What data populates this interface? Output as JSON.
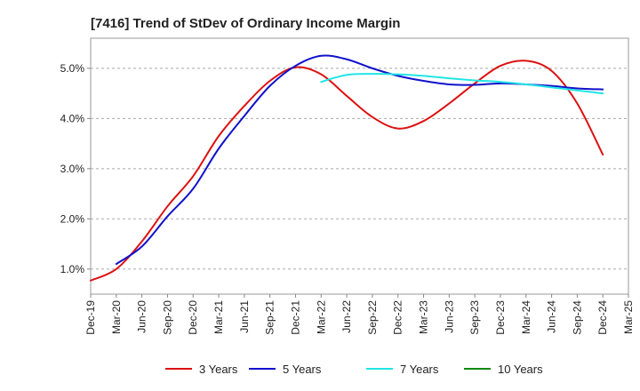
{
  "chart_data": {
    "type": "line",
    "title": "[7416]  Trend of StDev of Ordinary Income Margin",
    "xlabel": "",
    "ylabel": "",
    "x_ticks": [
      "Dec-19",
      "Mar-20",
      "Jun-20",
      "Sep-20",
      "Dec-20",
      "Mar-21",
      "Jun-21",
      "Sep-21",
      "Dec-21",
      "Mar-22",
      "Jun-22",
      "Sep-22",
      "Dec-22",
      "Mar-23",
      "Jun-23",
      "Sep-23",
      "Dec-23",
      "Mar-24",
      "Jun-24",
      "Sep-24",
      "Dec-24",
      "Mar-25"
    ],
    "y_ticks": [
      "1.0%",
      "2.0%",
      "3.0%",
      "4.0%",
      "5.0%"
    ],
    "ylim": [
      0.5,
      5.6
    ],
    "grid": "horizontal-dashed",
    "legend_position": "bottom",
    "series": [
      {
        "name": "3 Years",
        "color": "#dd1111",
        "x": [
          "Dec-19",
          "Mar-20",
          "Jun-20",
          "Sep-20",
          "Dec-20",
          "Mar-21",
          "Jun-21",
          "Sep-21",
          "Dec-21",
          "Mar-22",
          "Jun-22",
          "Sep-22",
          "Dec-22",
          "Mar-23",
          "Jun-23",
          "Sep-23",
          "Dec-23",
          "Mar-24",
          "Jun-24",
          "Sep-24",
          "Dec-24"
        ],
        "values": [
          0.77,
          1.0,
          1.55,
          2.25,
          2.85,
          3.65,
          4.25,
          4.75,
          5.02,
          4.88,
          4.45,
          4.03,
          3.8,
          3.95,
          4.3,
          4.7,
          5.05,
          5.15,
          4.95,
          4.3,
          3.28
        ]
      },
      {
        "name": "5 Years",
        "color": "#1111cc",
        "x": [
          "Dec-19",
          "Mar-20",
          "Jun-20",
          "Sep-20",
          "Dec-20",
          "Mar-21",
          "Jun-21",
          "Sep-21",
          "Dec-21",
          "Mar-22",
          "Jun-22",
          "Sep-22",
          "Dec-22",
          "Mar-23",
          "Jun-23",
          "Sep-23",
          "Dec-23",
          "Mar-24",
          "Jun-24",
          "Sep-24",
          "Dec-24"
        ],
        "values": [
          null,
          1.1,
          1.45,
          2.05,
          2.6,
          3.4,
          4.05,
          4.65,
          5.05,
          5.25,
          5.18,
          5.0,
          4.85,
          4.75,
          4.68,
          4.67,
          4.7,
          4.68,
          4.65,
          4.6,
          4.58
        ]
      },
      {
        "name": "7 Years",
        "color": "#22e5e5",
        "x": [
          "Dec-19",
          "Mar-20",
          "Jun-20",
          "Sep-20",
          "Dec-20",
          "Mar-21",
          "Jun-21",
          "Sep-21",
          "Dec-21",
          "Mar-22",
          "Jun-22",
          "Sep-22",
          "Dec-22",
          "Mar-23",
          "Jun-23",
          "Sep-23",
          "Dec-23",
          "Mar-24",
          "Jun-24",
          "Sep-24",
          "Dec-24"
        ],
        "values": [
          null,
          null,
          null,
          null,
          null,
          null,
          null,
          null,
          null,
          4.73,
          4.87,
          4.89,
          4.88,
          4.85,
          4.8,
          4.76,
          4.73,
          4.68,
          4.62,
          4.56,
          4.5
        ]
      },
      {
        "name": "10 Years",
        "color": "#118811",
        "x": [],
        "values": []
      }
    ]
  }
}
